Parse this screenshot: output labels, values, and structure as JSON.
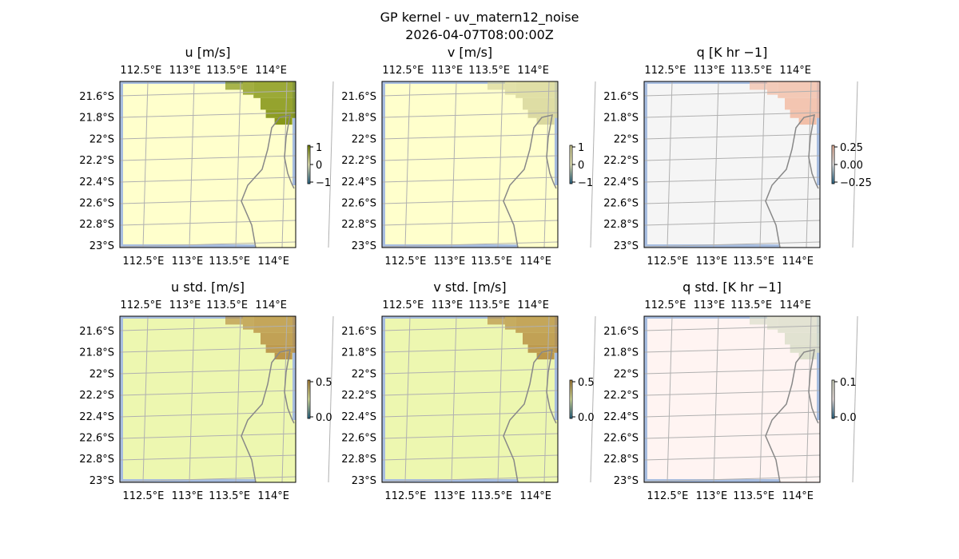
{
  "figure": {
    "title": "GP kernel - uv_matern12_noise",
    "subtitle": "2026-04-07T08:00:00Z"
  },
  "chart_data": [
    {
      "type": "heatmap",
      "title": "u [m/s]",
      "colorbar_ticks": [
        "1",
        "0",
        "−1"
      ],
      "clim": [
        -1,
        1
      ],
      "field": "mean_u",
      "colors": {
        "background": "#ffffcc",
        "feature": "#7a8c06",
        "coast": "#888888",
        "water": "#a7bde0"
      }
    },
    {
      "type": "heatmap",
      "title": "v [m/s]",
      "colorbar_ticks": [
        "1",
        "0",
        "−1"
      ],
      "clim": [
        -1,
        1
      ],
      "field": "mean_v",
      "colors": {
        "background": "#ffffcc",
        "feature": "#d6d49a",
        "coast": "#888888",
        "water": "#a7bde0"
      }
    },
    {
      "type": "heatmap",
      "title": "q [K hr −1]",
      "colorbar_ticks": [
        "0.25",
        "0.00",
        "−0.25"
      ],
      "clim": [
        -0.25,
        0.25
      ],
      "field": "mean_q",
      "colors": {
        "background": "#f5f5f5",
        "feature": "#f2b9a0",
        "coast": "#888888",
        "water": "#a7bde0"
      }
    },
    {
      "type": "heatmap",
      "title": "u std. [m/s]",
      "colorbar_ticks": [
        "0.5",
        "0.0"
      ],
      "clim": [
        0,
        0.5
      ],
      "field": "std_u",
      "colors": {
        "background": "#edf7b0",
        "feature": "#b58b3e",
        "coast": "#888888",
        "water": "#a7bde0"
      }
    },
    {
      "type": "heatmap",
      "title": "v std. [m/s]",
      "colorbar_ticks": [
        "0.5",
        "0.0"
      ],
      "clim": [
        0,
        0.5
      ],
      "field": "std_v",
      "colors": {
        "background": "#edf7b0",
        "feature": "#b58b3e",
        "coast": "#888888",
        "water": "#a7bde0"
      }
    },
    {
      "type": "heatmap",
      "title": "q std. [K hr −1]",
      "colorbar_ticks": [
        "0.1",
        "0.0"
      ],
      "clim": [
        0,
        0.1
      ],
      "field": "std_q",
      "colors": {
        "background": "#fff4f2",
        "feature": "#d9ddc8",
        "coast": "#888888",
        "water": "#a7bde0"
      }
    }
  ],
  "axes": {
    "x_ticks": [
      "112.5°E",
      "113°E",
      "113.5°E",
      "114°E"
    ],
    "y_ticks": [
      "21.6°S",
      "21.8°S",
      "22°S",
      "22.2°S",
      "22.4°S",
      "22.6°S",
      "22.8°S",
      "23°S"
    ],
    "grid": true
  }
}
